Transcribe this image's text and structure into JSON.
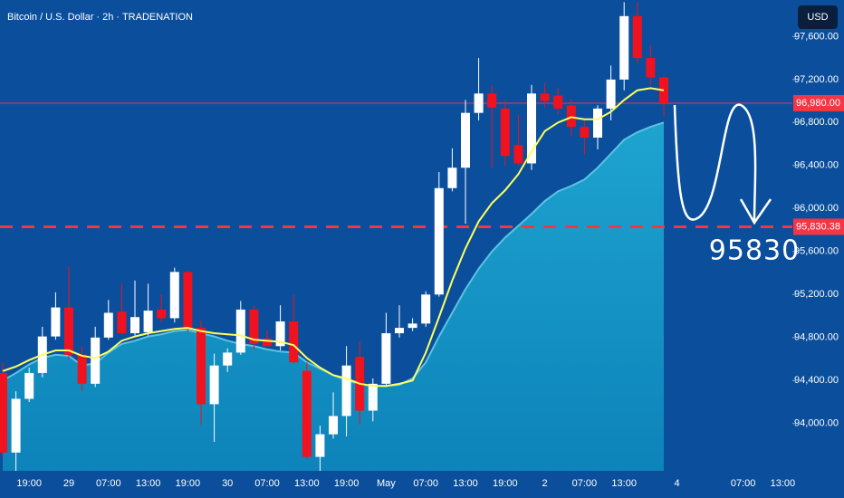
{
  "chart_data": {
    "type": "candlestick",
    "title": "Bitcoin / U.S. Dollar · 2h · TRADENATION",
    "currency": "USD",
    "annotation": "95830",
    "up_color": "#ffffff",
    "down_color": "#f0121e",
    "categories": [
      null,
      null,
      "19:00",
      null,
      null,
      "29",
      null,
      null,
      "07:00",
      null,
      null,
      "13:00",
      null,
      null,
      "19:00",
      null,
      null,
      "30",
      null,
      null,
      "07:00",
      null,
      null,
      "13:00",
      null,
      null,
      "19:00",
      null,
      null,
      "May",
      null,
      null,
      "07:00",
      null,
      null,
      "13:00",
      null,
      null,
      "19:00",
      null,
      null,
      "2",
      null,
      null,
      "07:00",
      null,
      null,
      "13:00",
      null,
      null,
      null,
      "4",
      null,
      null,
      null,
      null,
      "07:00",
      null,
      null,
      "13:00"
    ],
    "open": [
      94470,
      93730,
      94230,
      94470,
      94810,
      95080,
      94640,
      94370,
      94800,
      95040,
      94840,
      94850,
      95060,
      94980,
      95410,
      94890,
      94180,
      94540,
      94660,
      95060,
      94790,
      94720,
      94950,
      94490,
      93690,
      93900,
      94070,
      94620,
      94120,
      94370,
      94840,
      94890,
      94930,
      95200,
      96190,
      96380,
      96890,
      97070,
      96930,
      96590,
      96420,
      97070,
      97050,
      96960,
      96760,
      96660,
      96930,
      97200,
      97790,
      97400,
      97220,
      null,
      null,
      null,
      null,
      null,
      null,
      null,
      null,
      null
    ],
    "high": [
      94570,
      94300,
      94520,
      94900,
      95220,
      95460,
      94720,
      94900,
      95150,
      95300,
      95330,
      95300,
      95200,
      95450,
      95420,
      94960,
      94650,
      94700,
      95140,
      95100,
      94870,
      95100,
      95200,
      94570,
      93980,
      94290,
      94720,
      94760,
      94420,
      95030,
      95100,
      94980,
      95230,
      96340,
      96560,
      97010,
      97400,
      97150,
      97000,
      96870,
      97150,
      97170,
      97120,
      97010,
      96820,
      96960,
      97330,
      97920,
      97920,
      97520,
      97230,
      null,
      null,
      null,
      null,
      null,
      null,
      null,
      null,
      null
    ],
    "low": [
      93690,
      93560,
      94200,
      94430,
      94780,
      94600,
      94300,
      94340,
      94780,
      94830,
      94820,
      94820,
      94940,
      94940,
      94850,
      93990,
      93830,
      94480,
      94640,
      94690,
      94720,
      94680,
      94560,
      93670,
      93560,
      93860,
      93880,
      93990,
      94020,
      94340,
      94800,
      94860,
      94900,
      95180,
      96160,
      95860,
      96820,
      96380,
      96400,
      96400,
      96360,
      96940,
      96880,
      96670,
      96500,
      96550,
      96820,
      97100,
      97350,
      97150,
      96860,
      null,
      null,
      null,
      null,
      null,
      null,
      null,
      null,
      null
    ],
    "close": [
      93730,
      94230,
      94470,
      94810,
      95080,
      94640,
      94370,
      94800,
      95030,
      94840,
      94990,
      95050,
      94980,
      95410,
      94890,
      94180,
      94540,
      94660,
      95060,
      94740,
      94720,
      94950,
      94570,
      93690,
      93900,
      94070,
      94540,
      94120,
      94370,
      94840,
      94890,
      94930,
      95200,
      96190,
      96380,
      96890,
      97070,
      96940,
      96490,
      96420,
      97070,
      97000,
      96930,
      96760,
      96660,
      96930,
      97200,
      97790,
      97400,
      97220,
      96980,
      null,
      null,
      null,
      null,
      null,
      null,
      null,
      null,
      null
    ],
    "ma": {
      "color": "#ffff5c",
      "values": [
        94488,
        94530,
        94590,
        94640,
        94680,
        94680,
        94630,
        94610,
        94670,
        94770,
        94810,
        94840,
        94860,
        94880,
        94890,
        94860,
        94840,
        94830,
        94820,
        94780,
        94770,
        94760,
        94730,
        94610,
        94520,
        94450,
        94420,
        94370,
        94350,
        94350,
        94370,
        94400,
        94660,
        94990,
        95330,
        95630,
        95880,
        96050,
        96170,
        96320,
        96530,
        96720,
        96800,
        96850,
        96830,
        96830,
        96900,
        97010,
        97100,
        97120,
        97100,
        null,
        null,
        null,
        null,
        null,
        null,
        null,
        null,
        null
      ]
    },
    "area": {
      "color": "#1aa3cf",
      "values": [
        94400,
        94470,
        94550,
        94610,
        94640,
        94630,
        94540,
        94560,
        94660,
        94740,
        94770,
        94810,
        94830,
        94860,
        94870,
        94840,
        94810,
        94770,
        94740,
        94720,
        94690,
        94670,
        94660,
        94570,
        94510,
        94450,
        94400,
        94370,
        94350,
        94350,
        94360,
        94420,
        94570,
        94810,
        95030,
        95250,
        95440,
        95600,
        95730,
        95840,
        95950,
        96070,
        96160,
        96210,
        96270,
        96380,
        96510,
        96640,
        96710,
        96760,
        96800,
        null,
        null,
        null,
        null,
        null,
        null,
        null,
        null,
        null
      ]
    },
    "price_lines": [
      {
        "value": 96980,
        "label": "96,980.00",
        "color": "#f23645",
        "dashed": false
      },
      {
        "value": 95830.38,
        "label": "95,830.38",
        "color": "#f23645",
        "dashed": true
      }
    ],
    "ylim": [
      93560,
      97940
    ],
    "yticks": [
      {
        "value": 94000,
        "label": "94,000.00"
      },
      {
        "value": 94400,
        "label": "94,400.00"
      },
      {
        "value": 94800,
        "label": "94,800.00"
      },
      {
        "value": 95200,
        "label": "95,200.00"
      },
      {
        "value": 95600,
        "label": "95,600.00"
      },
      {
        "value": 96000,
        "label": "96,000.00"
      },
      {
        "value": 96400,
        "label": "96,400.00"
      },
      {
        "value": 96800,
        "label": "96,800.00"
      },
      {
        "value": 97200,
        "label": "97,200.00"
      },
      {
        "value": 97600,
        "label": "97,600.00"
      }
    ]
  }
}
